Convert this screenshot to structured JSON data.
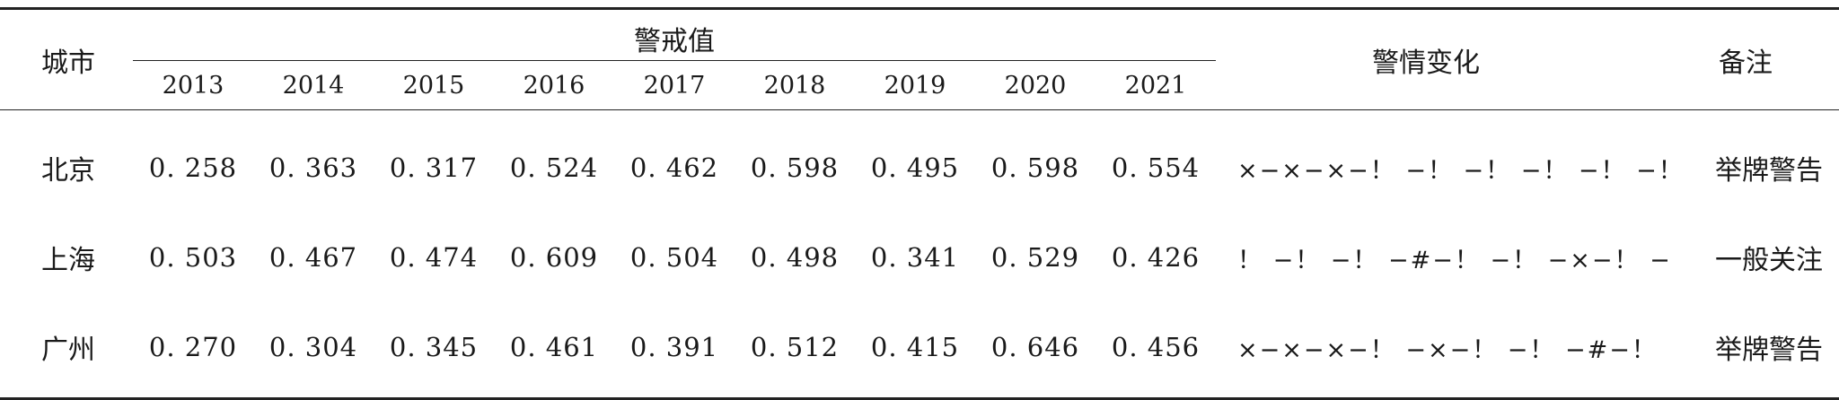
{
  "table": {
    "headers": {
      "city": "城市",
      "group": "警戒值",
      "change": "警情变化",
      "note": "备注",
      "years": [
        "2013",
        "2014",
        "2015",
        "2016",
        "2017",
        "2018",
        "2019",
        "2020",
        "2021"
      ]
    },
    "rows": [
      {
        "city": "北京",
        "values": [
          "0. 258",
          "0. 363",
          "0. 317",
          "0. 524",
          "0. 462",
          "0. 598",
          "0. 495",
          "0. 598",
          "0. 554"
        ],
        "change": "×−×−×−！ −！ −！ −！ −！ −！",
        "note": "举牌警告"
      },
      {
        "city": "上海",
        "values": [
          "0. 503",
          "0. 467",
          "0. 474",
          "0. 609",
          "0. 504",
          "0. 498",
          "0. 341",
          "0. 529",
          "0. 426"
        ],
        "change": "！ −！ −！ −#−！ −！ −×−！ −！",
        "note": "一般关注"
      },
      {
        "city": "广州",
        "values": [
          "0. 270",
          "0. 304",
          "0. 345",
          "0. 461",
          "0. 391",
          "0. 512",
          "0. 415",
          "0. 646",
          "0. 456"
        ],
        "change": "×−×−×−！ −×−！ −！ −#−！",
        "note": "举牌警告"
      }
    ]
  }
}
